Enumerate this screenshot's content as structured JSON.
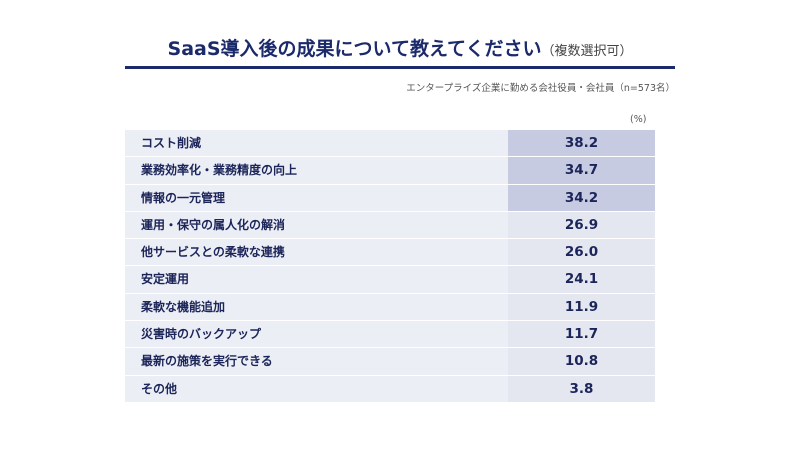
{
  "header": {
    "title": "SaaS導入後の成果について教えてください",
    "title_note": "（複数選択可）",
    "note": "エンタープライズ企業に勤める会社役員・会社員（n=573名）"
  },
  "table": {
    "unit": "(%)",
    "rows": [
      {
        "label": "コスト削減",
        "value": "38.2",
        "highlighted": true
      },
      {
        "label": "業務効率化・業務精度の向上",
        "value": "34.7",
        "highlighted": true
      },
      {
        "label": "情報の一元管理",
        "value": "34.2",
        "highlighted": true
      },
      {
        "label": "運用・保守の属人化の解消",
        "value": "26.9",
        "highlighted": false
      },
      {
        "label": "他サービスとの柔軟な連携",
        "value": "26.0",
        "highlighted": false
      },
      {
        "label": "安定運用",
        "value": "24.1",
        "highlighted": false
      },
      {
        "label": "柔軟な機能追加",
        "value": "11.9",
        "highlighted": false
      },
      {
        "label": "災害時のバックアップ",
        "value": "11.7",
        "highlighted": false
      },
      {
        "label": "最新の施策を実行できる",
        "value": "10.8",
        "highlighted": false
      },
      {
        "label": "その他",
        "value": "3.8",
        "highlighted": false
      }
    ]
  }
}
